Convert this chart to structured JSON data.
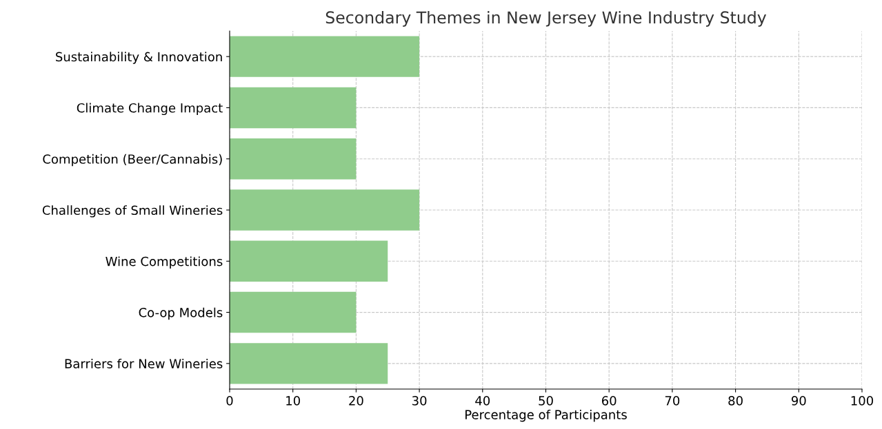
{
  "chart_data": {
    "type": "bar",
    "orientation": "horizontal",
    "title": "Secondary Themes in New Jersey Wine Industry Study",
    "xlabel": "Percentage of Participants",
    "categories": [
      "Sustainability & Innovation",
      "Climate Change Impact",
      "Competition (Beer/Cannabis)",
      "Challenges of Small Wineries",
      "Wine Competitions",
      "Co-op Models",
      "Barriers for New Wineries"
    ],
    "values": [
      30,
      20,
      20,
      30,
      25,
      20,
      25
    ],
    "color": "#90cc8c",
    "xlim": [
      0,
      100
    ],
    "xticks": [
      0,
      10,
      20,
      30,
      40,
      50,
      60,
      70,
      80,
      90,
      100
    ],
    "grid": true
  }
}
